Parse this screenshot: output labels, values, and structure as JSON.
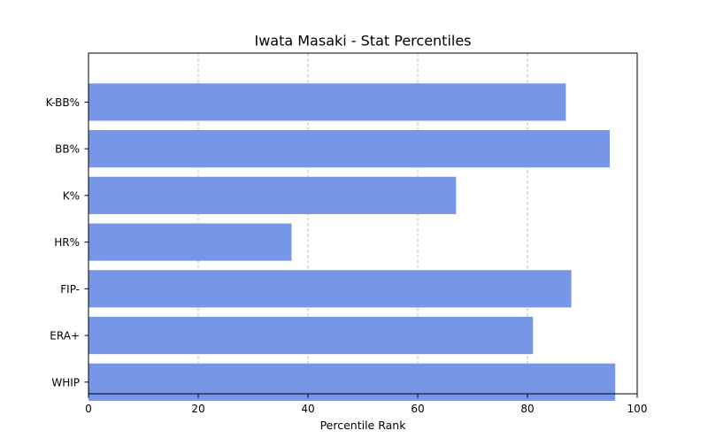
{
  "chart_data": {
    "type": "bar",
    "orientation": "horizontal",
    "title": "Iwata Masaki - Stat Percentiles",
    "xlabel": "Percentile Rank",
    "ylabel": "",
    "categories": [
      "WHIP",
      "ERA+",
      "FIP-",
      "HR%",
      "K%",
      "BB%",
      "K-BB%"
    ],
    "values": [
      96,
      81,
      88,
      37,
      67,
      95,
      87
    ],
    "xlim": [
      0,
      100
    ],
    "xticks": [
      "0",
      "20",
      "40",
      "60",
      "80",
      "100"
    ],
    "grid": "x-axis dashed",
    "legend": "none",
    "bar_color": "#7896E8",
    "grid_color": "#b0b0b0"
  }
}
